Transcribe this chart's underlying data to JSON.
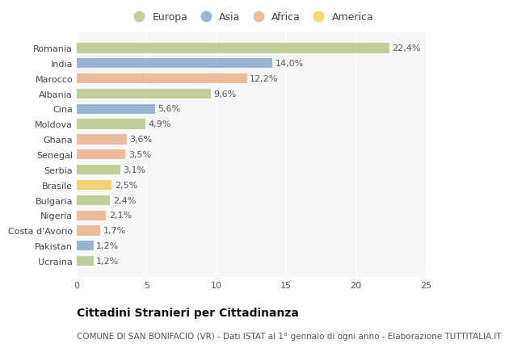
{
  "countries": [
    "Romania",
    "India",
    "Marocco",
    "Albania",
    "Cina",
    "Moldova",
    "Ghana",
    "Senegal",
    "Serbia",
    "Brasile",
    "Bulgaria",
    "Nigeria",
    "Costa d'Avorio",
    "Pakistan",
    "Ucraina"
  ],
  "values": [
    22.4,
    14.0,
    12.2,
    9.6,
    5.6,
    4.9,
    3.6,
    3.5,
    3.1,
    2.5,
    2.4,
    2.1,
    1.7,
    1.2,
    1.2
  ],
  "labels": [
    "22,4%",
    "14,0%",
    "12,2%",
    "9,6%",
    "5,6%",
    "4,9%",
    "3,6%",
    "3,5%",
    "3,1%",
    "2,5%",
    "2,4%",
    "2,1%",
    "1,7%",
    "1,2%",
    "1,2%"
  ],
  "continents": [
    "Europa",
    "Asia",
    "Africa",
    "Europa",
    "Asia",
    "Europa",
    "Africa",
    "Africa",
    "Europa",
    "America",
    "Europa",
    "Africa",
    "Africa",
    "Asia",
    "Europa"
  ],
  "continent_colors": {
    "Europa": "#adc27a",
    "Asia": "#7b9dc4",
    "Africa": "#e8a87c",
    "America": "#f0c84e"
  },
  "legend_order": [
    "Europa",
    "Asia",
    "Africa",
    "America"
  ],
  "bg_color": "#ffffff",
  "plot_bg_color": "#f7f7f7",
  "xlim": [
    0,
    25
  ],
  "xticks": [
    0,
    5,
    10,
    15,
    20,
    25
  ],
  "title": "Cittadini Stranieri per Cittadinanza",
  "subtitle": "COMUNE DI SAN BONIFACIO (VR) - Dati ISTAT al 1° gennaio di ogni anno - Elaborazione TUTTITALIA.IT",
  "title_fontsize": 10,
  "subtitle_fontsize": 7.5,
  "label_fontsize": 8,
  "tick_fontsize": 8,
  "legend_fontsize": 9,
  "bar_height": 0.65
}
